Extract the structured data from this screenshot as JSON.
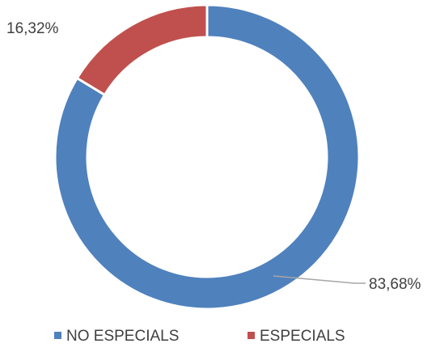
{
  "chart_data": {
    "type": "pie",
    "variant": "donut",
    "categories": [
      "NO ESPECIALS",
      "ESPECIALS"
    ],
    "values": [
      83.68,
      16.32
    ],
    "data_labels": [
      "83,68%",
      "16,32%"
    ],
    "colors": [
      "#4f81bd",
      "#c0504d"
    ],
    "legend": {
      "placement": "bottom",
      "items": [
        "NO ESPECIALS",
        "ESPECIALS"
      ]
    },
    "title": ""
  }
}
